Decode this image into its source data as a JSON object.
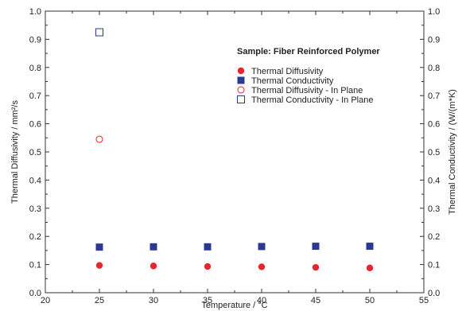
{
  "chart_data": {
    "type": "scatter",
    "xlabel": "Temperature / °C",
    "ylabel_left": "Thermal Diffusivity / mm²/s",
    "ylabel_right": "Thermal Conductivity / (W/(m*K)",
    "xlim": [
      20,
      55
    ],
    "ylim_left": [
      0.0,
      1.0
    ],
    "ylim_right": [
      0.0,
      1.0
    ],
    "x_ticks": [
      20,
      25,
      30,
      35,
      40,
      45,
      50,
      55
    ],
    "y_ticks": [
      "0.0",
      "0.1",
      "0.2",
      "0.3",
      "0.4",
      "0.5",
      "0.6",
      "0.7",
      "0.8",
      "0.9",
      "1.0"
    ],
    "grid": false,
    "legend_title": "Sample: Fiber Reinforced Polymer",
    "legend_placement": "top-right",
    "series": [
      {
        "name": "Thermal Diffusivity",
        "marker": "filled-circle",
        "axis": "left",
        "color": "#e8262c",
        "x": [
          25,
          30,
          35,
          40,
          45,
          50
        ],
        "y": [
          0.097,
          0.095,
          0.093,
          0.092,
          0.09,
          0.088
        ]
      },
      {
        "name": "Thermal Conductivity",
        "marker": "filled-square",
        "axis": "right",
        "color": "#2b3990",
        "x": [
          25,
          30,
          35,
          40,
          45,
          50
        ],
        "y": [
          0.162,
          0.163,
          0.163,
          0.164,
          0.165,
          0.165
        ]
      },
      {
        "name": "Thermal Diffusivity - In Plane",
        "marker": "open-circle",
        "axis": "left",
        "color": "#e8262c",
        "x": [
          25
        ],
        "y": [
          0.545
        ]
      },
      {
        "name": "Thermal Conductivity - In Plane",
        "marker": "open-square",
        "axis": "right",
        "color": "#2b3990",
        "x": [
          25
        ],
        "y": [
          0.925
        ]
      }
    ]
  }
}
